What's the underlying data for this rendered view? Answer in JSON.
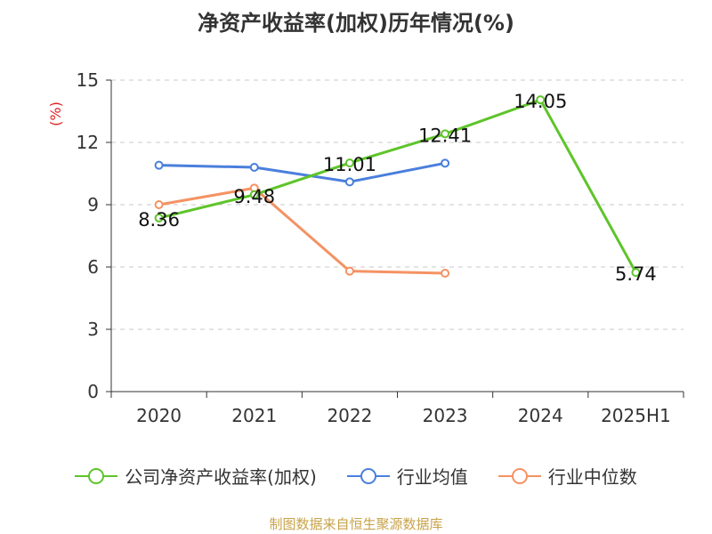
{
  "chart_data": {
    "type": "line",
    "title": "净资产收益率(加权)历年情况(%)",
    "ylabel": "(%)",
    "xlabel": "",
    "categories": [
      "2020",
      "2021",
      "2022",
      "2023",
      "2024",
      "2025H1"
    ],
    "ylim": [
      0,
      15
    ],
    "yticks": [
      0,
      3,
      6,
      9,
      12,
      15
    ],
    "grid": true,
    "legend_position": "bottom",
    "series": [
      {
        "name": "公司净资产收益率(加权)",
        "color": "#5ec42a",
        "values": [
          8.36,
          9.48,
          11.01,
          12.41,
          14.05,
          5.74
        ],
        "labels": [
          "8.36",
          "9.48",
          "11.01",
          "12.41",
          "14.05",
          "5.74"
        ]
      },
      {
        "name": "行业均值",
        "color": "#4a7fdc",
        "values": [
          10.9,
          10.8,
          10.1,
          11.0,
          null,
          null
        ]
      },
      {
        "name": "行业中位数",
        "color": "#f59263",
        "values": [
          9.0,
          9.8,
          5.8,
          5.7,
          null,
          null
        ]
      }
    ],
    "source": "制图数据来自恒生聚源数据库"
  }
}
